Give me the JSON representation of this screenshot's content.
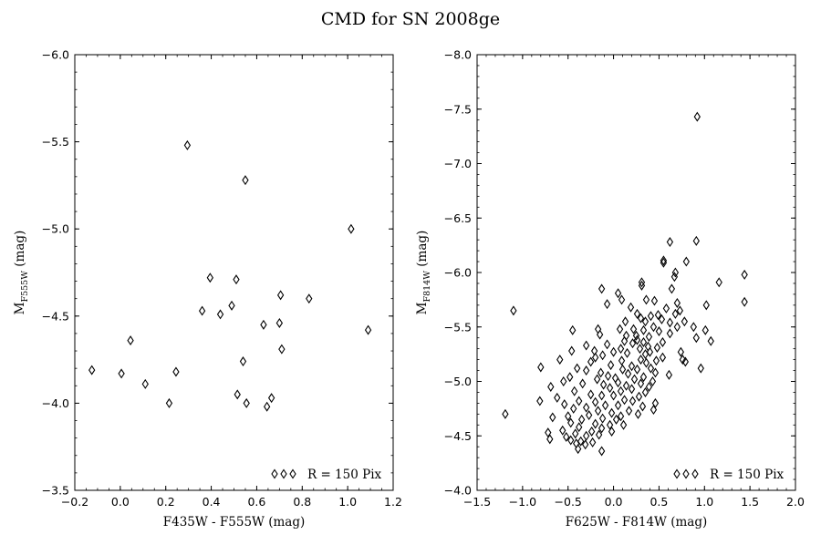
{
  "figure": {
    "title": "CMD for SN 2008ge"
  },
  "chart_data": [
    {
      "type": "scatter",
      "xlabel": "F435W - F555W (mag)",
      "ylabel_main": "M",
      "ylabel_sub": "F555W",
      "ylabel_unit": " (mag)",
      "xlim": [
        -0.2,
        1.2
      ],
      "ylim": [
        -3.5,
        -6.0
      ],
      "y_inverted": true,
      "xticks": [
        -0.2,
        0.0,
        0.2,
        0.4,
        0.6,
        0.8,
        1.0,
        1.2
      ],
      "xtick_labels": [
        "−0.2",
        "0.0",
        "0.2",
        "0.4",
        "0.6",
        "0.8",
        "1.0",
        "1.2"
      ],
      "yticks": [
        -6.0,
        -5.5,
        -5.0,
        -4.5,
        -4.0,
        -3.5
      ],
      "ytick_labels": [
        "−6.0",
        "−5.5",
        "−5.0",
        "−4.5",
        "−4.0",
        "−3.5"
      ],
      "marker": "open-diamond",
      "legend": {
        "label": "R = 150 Pix",
        "placement": "lower-right"
      },
      "points": [
        {
          "x": 0.295,
          "y": -5.48
        },
        {
          "x": 0.55,
          "y": -5.28
        },
        {
          "x": 1.015,
          "y": -5.0
        },
        {
          "x": 0.395,
          "y": -4.72
        },
        {
          "x": 0.51,
          "y": -4.71
        },
        {
          "x": 0.705,
          "y": -4.62
        },
        {
          "x": 0.83,
          "y": -4.6
        },
        {
          "x": 0.36,
          "y": -4.53
        },
        {
          "x": 0.49,
          "y": -4.56
        },
        {
          "x": 0.44,
          "y": -4.51
        },
        {
          "x": 0.7,
          "y": -4.46
        },
        {
          "x": 0.63,
          "y": -4.45
        },
        {
          "x": 1.09,
          "y": -4.42
        },
        {
          "x": 0.045,
          "y": -4.36
        },
        {
          "x": 0.71,
          "y": -4.31
        },
        {
          "x": 0.54,
          "y": -4.24
        },
        {
          "x": -0.125,
          "y": -4.19
        },
        {
          "x": 0.245,
          "y": -4.18
        },
        {
          "x": 0.005,
          "y": -4.17
        },
        {
          "x": 0.11,
          "y": -4.11
        },
        {
          "x": 0.515,
          "y": -4.05
        },
        {
          "x": 0.665,
          "y": -4.03
        },
        {
          "x": 0.215,
          "y": -4.0
        },
        {
          "x": 0.555,
          "y": -4.0
        },
        {
          "x": 0.645,
          "y": -3.98
        }
      ]
    },
    {
      "type": "scatter",
      "xlabel": "F625W - F814W (mag)",
      "ylabel_main": "M",
      "ylabel_sub": "F814W",
      "ylabel_unit": " (mag)",
      "xlim": [
        -1.5,
        2.0
      ],
      "ylim": [
        -4.0,
        -8.0
      ],
      "y_inverted": true,
      "xticks": [
        -1.5,
        -1.0,
        -0.5,
        0.0,
        0.5,
        1.0,
        1.5,
        2.0
      ],
      "xtick_labels": [
        "−1.5",
        "−1.0",
        "−0.5",
        "0.0",
        "0.5",
        "1.0",
        "1.5",
        "2.0"
      ],
      "yticks": [
        -8.0,
        -7.5,
        -7.0,
        -6.5,
        -6.0,
        -5.5,
        -5.0,
        -4.5,
        -4.0
      ],
      "ytick_labels": [
        "−8.0",
        "−7.5",
        "−7.0",
        "−6.5",
        "−6.0",
        "−5.5",
        "−5.0",
        "−4.5",
        "−4.0"
      ],
      "marker": "open-diamond",
      "legend": {
        "label": "R = 150 Pix",
        "placement": "lower-right"
      },
      "points": [
        {
          "x": 0.92,
          "y": -7.43
        },
        {
          "x": 0.62,
          "y": -6.28
        },
        {
          "x": 0.91,
          "y": -6.29
        },
        {
          "x": 0.55,
          "y": -6.11
        },
        {
          "x": 0.55,
          "y": -6.09
        },
        {
          "x": 0.8,
          "y": -6.1
        },
        {
          "x": 0.68,
          "y": -6.0
        },
        {
          "x": 1.44,
          "y": -5.98
        },
        {
          "x": 0.67,
          "y": -5.96
        },
        {
          "x": 1.16,
          "y": -5.91
        },
        {
          "x": 0.31,
          "y": -5.91
        },
        {
          "x": 0.31,
          "y": -5.88
        },
        {
          "x": -0.13,
          "y": -5.85
        },
        {
          "x": 0.64,
          "y": -5.85
        },
        {
          "x": 0.05,
          "y": -5.81
        },
        {
          "x": 0.36,
          "y": -5.75
        },
        {
          "x": 1.44,
          "y": -5.73
        },
        {
          "x": 0.09,
          "y": -5.75
        },
        {
          "x": -0.07,
          "y": -5.71
        },
        {
          "x": 0.7,
          "y": -5.72
        },
        {
          "x": 1.02,
          "y": -5.7
        },
        {
          "x": 0.19,
          "y": -5.68
        },
        {
          "x": 0.45,
          "y": -5.74
        },
        {
          "x": 0.58,
          "y": -5.67
        },
        {
          "x": -1.1,
          "y": -5.65
        },
        {
          "x": 0.73,
          "y": -5.65
        },
        {
          "x": 0.68,
          "y": -5.62
        },
        {
          "x": 0.26,
          "y": -5.62
        },
        {
          "x": 0.49,
          "y": -5.61
        },
        {
          "x": 0.41,
          "y": -5.6
        },
        {
          "x": 0.3,
          "y": -5.58
        },
        {
          "x": 0.13,
          "y": -5.55
        },
        {
          "x": 0.35,
          "y": -5.55
        },
        {
          "x": 0.78,
          "y": -5.55
        },
        {
          "x": 0.53,
          "y": -5.57
        },
        {
          "x": 0.62,
          "y": -5.54
        },
        {
          "x": 0.88,
          "y": -5.5
        },
        {
          "x": 0.7,
          "y": -5.5
        },
        {
          "x": 0.44,
          "y": -5.5
        },
        {
          "x": -0.45,
          "y": -5.47
        },
        {
          "x": -0.17,
          "y": -5.48
        },
        {
          "x": 0.07,
          "y": -5.48
        },
        {
          "x": 0.22,
          "y": -5.48
        },
        {
          "x": 0.33,
          "y": -5.47
        },
        {
          "x": 1.01,
          "y": -5.47
        },
        {
          "x": 0.5,
          "y": -5.46
        },
        {
          "x": 0.62,
          "y": -5.44
        },
        {
          "x": 0.25,
          "y": -5.42
        },
        {
          "x": -0.15,
          "y": -5.43
        },
        {
          "x": 0.14,
          "y": -5.42
        },
        {
          "x": 0.39,
          "y": -5.41
        },
        {
          "x": 0.91,
          "y": -5.4
        },
        {
          "x": 0.26,
          "y": -5.38
        },
        {
          "x": 0.12,
          "y": -5.37
        },
        {
          "x": 0.33,
          "y": -5.36
        },
        {
          "x": 0.54,
          "y": -5.36
        },
        {
          "x": 1.07,
          "y": -5.37
        },
        {
          "x": 0.21,
          "y": -5.35
        },
        {
          "x": -0.3,
          "y": -5.33
        },
        {
          "x": -0.07,
          "y": -5.34
        },
        {
          "x": 0.38,
          "y": -5.32
        },
        {
          "x": 0.48,
          "y": -5.31
        },
        {
          "x": 0.08,
          "y": -5.3
        },
        {
          "x": 0.29,
          "y": -5.3
        },
        {
          "x": -0.46,
          "y": -5.28
        },
        {
          "x": 0.74,
          "y": -5.27
        },
        {
          "x": -0.21,
          "y": -5.28
        },
        {
          "x": 0.4,
          "y": -5.27
        },
        {
          "x": 0.0,
          "y": -5.27
        },
        {
          "x": 0.15,
          "y": -5.26
        },
        {
          "x": 0.35,
          "y": -5.25
        },
        {
          "x": -0.12,
          "y": -5.24
        },
        {
          "x": -0.2,
          "y": -5.22
        },
        {
          "x": 0.54,
          "y": -5.22
        },
        {
          "x": -0.59,
          "y": -5.2
        },
        {
          "x": 0.3,
          "y": -5.2
        },
        {
          "x": 0.09,
          "y": -5.19
        },
        {
          "x": 0.47,
          "y": -5.19
        },
        {
          "x": 0.76,
          "y": -5.2
        },
        {
          "x": -0.25,
          "y": -5.18
        },
        {
          "x": 0.36,
          "y": -5.17
        },
        {
          "x": 0.79,
          "y": -5.18
        },
        {
          "x": -0.8,
          "y": -5.13
        },
        {
          "x": 0.2,
          "y": -5.14
        },
        {
          "x": -0.03,
          "y": -5.15
        },
        {
          "x": -0.4,
          "y": -5.12
        },
        {
          "x": 0.41,
          "y": -5.12
        },
        {
          "x": 0.96,
          "y": -5.12
        },
        {
          "x": 0.1,
          "y": -5.11
        },
        {
          "x": 0.26,
          "y": -5.11
        },
        {
          "x": -0.3,
          "y": -5.1
        },
        {
          "x": -0.14,
          "y": -5.08
        },
        {
          "x": 0.46,
          "y": -5.08
        },
        {
          "x": 0.16,
          "y": -5.07
        },
        {
          "x": 0.61,
          "y": -5.06
        },
        {
          "x": -0.06,
          "y": -5.05
        },
        {
          "x": -0.48,
          "y": -5.04
        },
        {
          "x": 0.33,
          "y": -5.04
        },
        {
          "x": 0.02,
          "y": -5.03
        },
        {
          "x": -0.18,
          "y": -5.02
        },
        {
          "x": 0.23,
          "y": -5.02
        },
        {
          "x": 0.43,
          "y": -5.0
        },
        {
          "x": -0.55,
          "y": -5.0
        },
        {
          "x": 0.05,
          "y": -4.99
        },
        {
          "x": -0.34,
          "y": -4.98
        },
        {
          "x": 0.3,
          "y": -4.98
        },
        {
          "x": -0.11,
          "y": -4.97
        },
        {
          "x": 0.14,
          "y": -4.96
        },
        {
          "x": -0.69,
          "y": -4.95
        },
        {
          "x": 0.39,
          "y": -4.95
        },
        {
          "x": -0.04,
          "y": -4.94
        },
        {
          "x": 0.2,
          "y": -4.93
        },
        {
          "x": -0.43,
          "y": -4.91
        },
        {
          "x": 0.08,
          "y": -4.91
        },
        {
          "x": 0.35,
          "y": -4.9
        },
        {
          "x": -0.25,
          "y": -4.88
        },
        {
          "x": -0.13,
          "y": -4.87
        },
        {
          "x": 0.0,
          "y": -4.87
        },
        {
          "x": 0.28,
          "y": -4.86
        },
        {
          "x": -0.62,
          "y": -4.85
        },
        {
          "x": -0.81,
          "y": -4.82
        },
        {
          "x": 0.12,
          "y": -4.83
        },
        {
          "x": -0.38,
          "y": -4.82
        },
        {
          "x": 0.21,
          "y": -4.82
        },
        {
          "x": -0.2,
          "y": -4.81
        },
        {
          "x": 0.46,
          "y": -4.8
        },
        {
          "x": -0.54,
          "y": -4.79
        },
        {
          "x": -0.09,
          "y": -4.78
        },
        {
          "x": 0.05,
          "y": -4.78
        },
        {
          "x": 0.32,
          "y": -4.77
        },
        {
          "x": -0.3,
          "y": -4.76
        },
        {
          "x": -0.44,
          "y": -4.75
        },
        {
          "x": 0.44,
          "y": -4.74
        },
        {
          "x": -0.17,
          "y": -4.73
        },
        {
          "x": 0.17,
          "y": -4.73
        },
        {
          "x": -1.19,
          "y": -4.7
        },
        {
          "x": -0.02,
          "y": -4.71
        },
        {
          "x": 0.27,
          "y": -4.7
        },
        {
          "x": -0.27,
          "y": -4.69
        },
        {
          "x": -0.5,
          "y": -4.68
        },
        {
          "x": 0.08,
          "y": -4.68
        },
        {
          "x": -0.67,
          "y": -4.67
        },
        {
          "x": -0.12,
          "y": -4.66
        },
        {
          "x": -0.35,
          "y": -4.65
        },
        {
          "x": 0.03,
          "y": -4.65
        },
        {
          "x": -0.47,
          "y": -4.62
        },
        {
          "x": -0.2,
          "y": -4.61
        },
        {
          "x": -0.04,
          "y": -4.6
        },
        {
          "x": 0.11,
          "y": -4.6
        },
        {
          "x": -0.38,
          "y": -4.58
        },
        {
          "x": -0.13,
          "y": -4.57
        },
        {
          "x": -0.56,
          "y": -4.55
        },
        {
          "x": -0.24,
          "y": -4.54
        },
        {
          "x": -0.02,
          "y": -4.54
        },
        {
          "x": -0.72,
          "y": -4.53
        },
        {
          "x": -0.42,
          "y": -4.52
        },
        {
          "x": -0.16,
          "y": -4.51
        },
        {
          "x": -0.3,
          "y": -4.5
        },
        {
          "x": -0.52,
          "y": -4.49
        },
        {
          "x": -0.7,
          "y": -4.47
        },
        {
          "x": -0.47,
          "y": -4.46
        },
        {
          "x": -0.36,
          "y": -4.45
        },
        {
          "x": -0.23,
          "y": -4.44
        },
        {
          "x": -0.41,
          "y": -4.43
        },
        {
          "x": -0.31,
          "y": -4.42
        },
        {
          "x": -0.39,
          "y": -4.38
        },
        {
          "x": -0.13,
          "y": -4.36
        }
      ]
    }
  ]
}
